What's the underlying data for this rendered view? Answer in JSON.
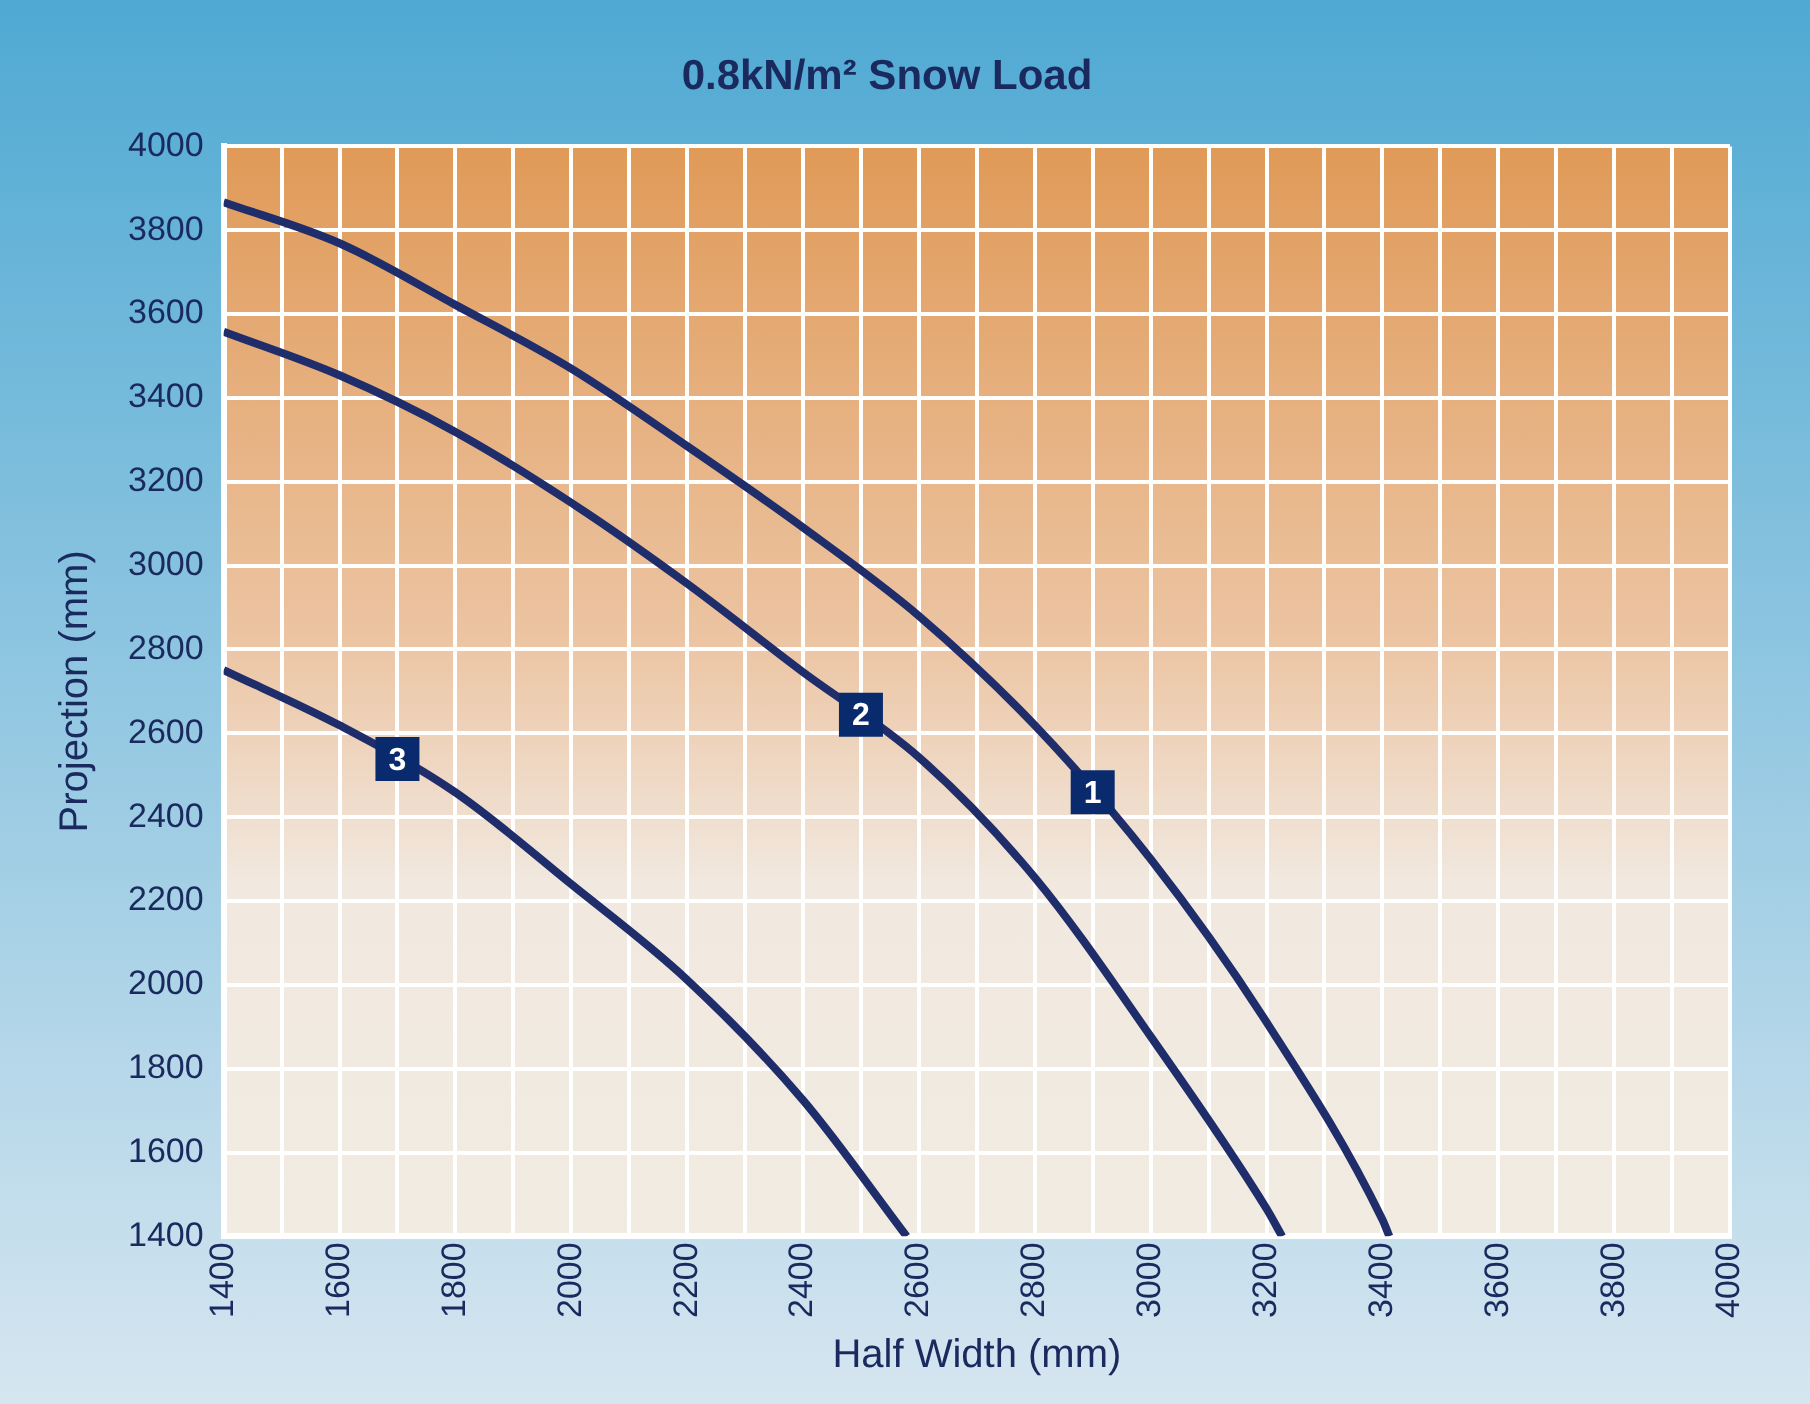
{
  "chart_data": {
    "type": "line",
    "title": "0.8kN/m² Snow Load",
    "xlabel": "Half Width (mm)",
    "ylabel": "Projection (mm)",
    "xlim": [
      1400,
      4000
    ],
    "xticks": [
      1400,
      {
        "value": 1500,
        "label": null
      },
      1600,
      {
        "value": 1700,
        "label": null
      },
      1800,
      {
        "value": 1900,
        "label": null
      },
      2000,
      {
        "value": 2100,
        "label": null
      },
      2200,
      {
        "value": 2300,
        "label": null
      },
      2400,
      {
        "value": 2500,
        "label": null
      },
      2600,
      {
        "value": 2700,
        "label": null
      },
      2800,
      {
        "value": 2900,
        "label": null
      },
      3000,
      {
        "value": 3100,
        "label": null
      },
      3200,
      {
        "value": 3300,
        "label": null
      },
      3400,
      {
        "value": 3500,
        "label": null
      },
      3600,
      {
        "value": 3700,
        "label": null
      },
      3800,
      {
        "value": 3900,
        "label": null
      },
      4000
    ],
    "ylim": [
      1400,
      4000
    ],
    "yticks": [
      1400,
      1600,
      1800,
      2000,
      2200,
      2400,
      2600,
      2800,
      3000,
      3200,
      3400,
      3600,
      3800,
      4000
    ],
    "grid": true,
    "legend": false,
    "marker": "none",
    "line_style": "solid",
    "series": [
      {
        "name": "1",
        "color": "#1f2d6b",
        "x": [
          1400,
          1600,
          1800,
          2000,
          2200,
          2400,
          2600,
          2800,
          3000,
          3200,
          3400,
          3412
        ],
        "values": [
          3867,
          3769,
          3622,
          3470,
          3285,
          3091,
          2880,
          2619,
          2300,
          1911,
          1440,
          1400
        ]
      },
      {
        "name": "2",
        "color": "#1f2d6b",
        "x": [
          1400,
          1600,
          1800,
          2000,
          2200,
          2400,
          2600,
          2800,
          3000,
          3200,
          3227
        ],
        "values": [
          3558,
          3454,
          3319,
          3150,
          2957,
          2746,
          2543,
          2256,
          1877,
          1466,
          1400
        ]
      },
      {
        "name": "3",
        "color": "#1f2d6b",
        "x": [
          1400,
          1600,
          1800,
          2000,
          2200,
          2400,
          2579
        ],
        "values": [
          2751,
          2619,
          2459,
          2240,
          2012,
          1725,
          1400
        ]
      }
    ]
  }
}
